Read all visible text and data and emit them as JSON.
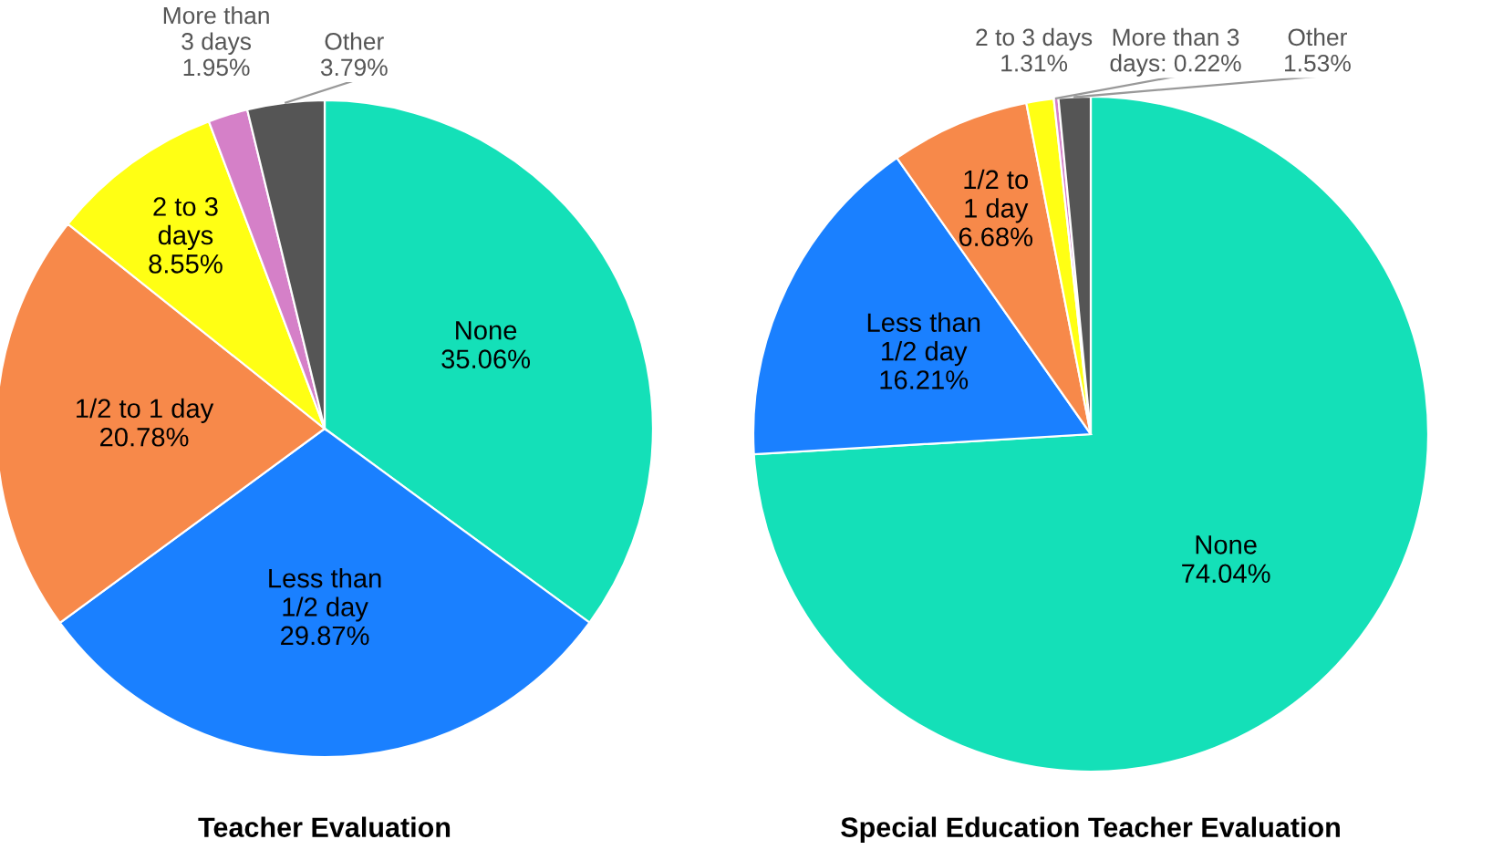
{
  "chart_data": [
    {
      "type": "pie",
      "title": "Teacher Evaluation",
      "categories": [
        "None",
        "Less than\n1/2 day",
        "1/2 to 1 day",
        "2 to 3\ndays",
        "More than\n3 days",
        "Other"
      ],
      "values": [
        35.06,
        29.87,
        20.78,
        8.55,
        1.95,
        3.79
      ],
      "value_labels": [
        "35.06%",
        "29.87%",
        "20.78%",
        "8.55%",
        "1.95%",
        "3.79%"
      ],
      "colors": [
        "#14e0b8",
        "#1a80ff",
        "#f7894a",
        "#ffff14",
        "#d580c8",
        "#555555"
      ]
    },
    {
      "type": "pie",
      "title": "Special Education Teacher Evaluation",
      "categories": [
        "None",
        "Less than\n1/2 day",
        "1/2 to\n1 day",
        "2 to 3 days",
        "More than 3\ndays",
        "Other"
      ],
      "values": [
        74.04,
        16.21,
        6.68,
        1.31,
        0.22,
        1.53
      ],
      "value_labels": [
        "74.04%",
        "16.21%",
        "6.68%",
        "1.31%",
        "0.22%",
        "1.53%"
      ],
      "colors": [
        "#14e0b8",
        "#1a80ff",
        "#f7894a",
        "#ffff14",
        "#d580c8",
        "#555555"
      ]
    }
  ]
}
